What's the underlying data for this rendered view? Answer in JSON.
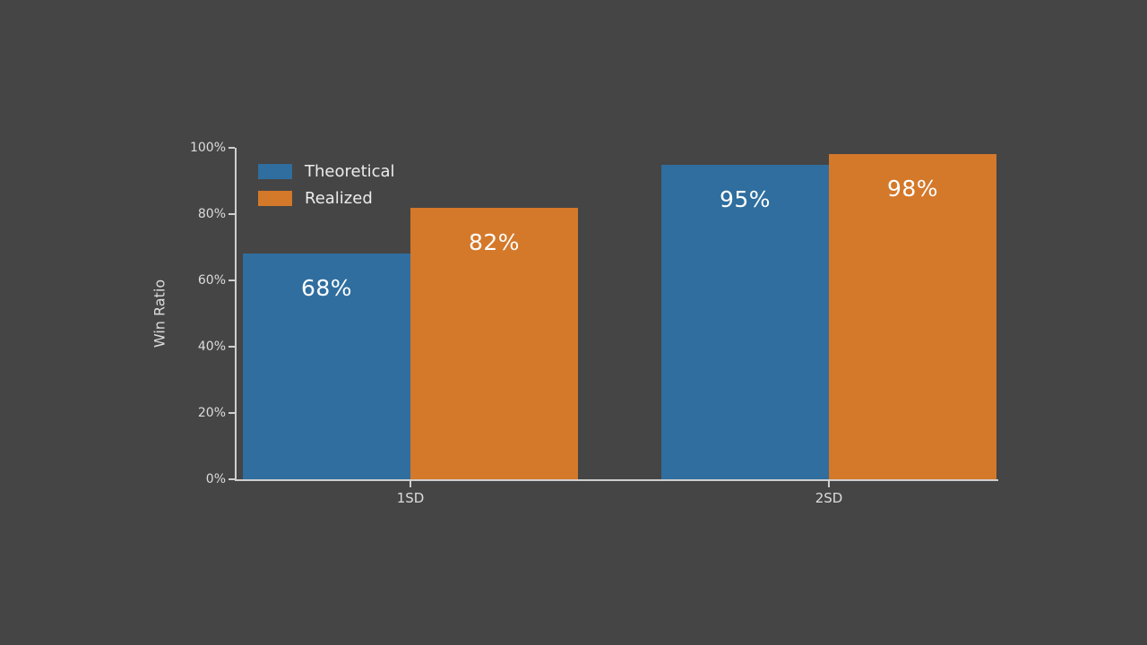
{
  "colors": {
    "background": "#454545",
    "axis": "#cfcfcf",
    "tick_text": "#dcdcdc",
    "legend_text": "#ececec",
    "bar_label_text": "#ffffff",
    "theoretical": "#2f6e9e",
    "realized": "#d4782a"
  },
  "chart_data": {
    "type": "bar",
    "categories": [
      "1SD",
      "2SD"
    ],
    "series": [
      {
        "name": "Theoretical",
        "color": "#2f6e9e",
        "values": [
          68,
          95
        ],
        "labels": [
          "68%",
          "95%"
        ]
      },
      {
        "name": "Realized",
        "color": "#d4782a",
        "values": [
          82,
          98
        ],
        "labels": [
          "82%",
          "98%"
        ]
      }
    ],
    "xlabel": "",
    "ylabel": "Win Ratio",
    "ylim": [
      0,
      100
    ],
    "yticks": [
      0,
      20,
      40,
      60,
      80,
      100
    ],
    "ytick_labels": [
      "0%",
      "20%",
      "40%",
      "60%",
      "80%",
      "100%"
    ],
    "grid": false,
    "legend_position": "upper left",
    "bar_labels_inside": true
  }
}
